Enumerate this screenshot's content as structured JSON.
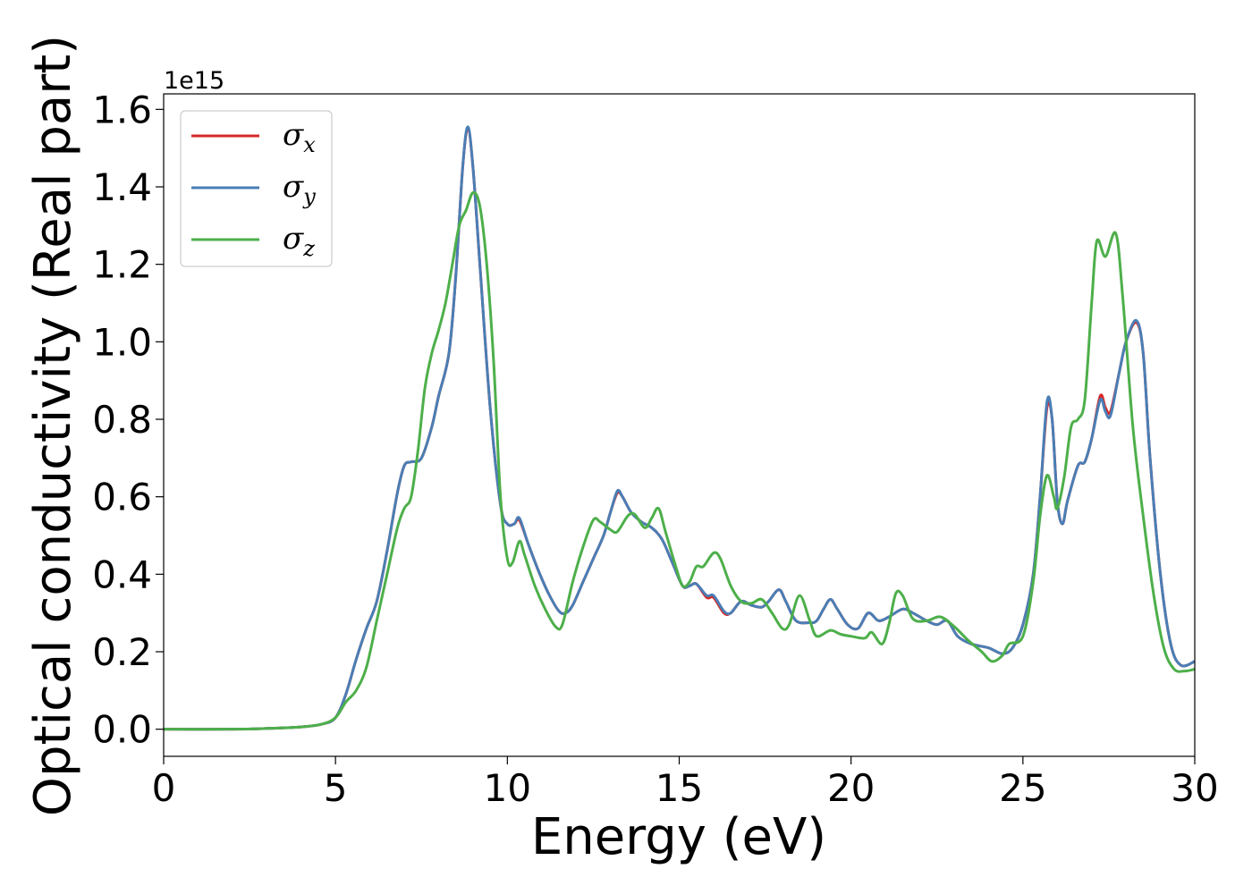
{
  "chart_data": {
    "type": "line",
    "xlabel": "Energy (eV)",
    "ylabel": "Optical conductivity (Real part)",
    "y_offset_label": "1e15",
    "xlim": [
      0,
      30
    ],
    "ylim": [
      -0.07,
      1.64
    ],
    "x_ticks": [
      0,
      5,
      10,
      15,
      20,
      25,
      30
    ],
    "x_tick_labels": [
      "0",
      "5",
      "10",
      "15",
      "20",
      "25",
      "30"
    ],
    "y_ticks": [
      0.0,
      0.2,
      0.4,
      0.6,
      0.8,
      1.0,
      1.2,
      1.4,
      1.6
    ],
    "y_tick_labels": [
      "0.0",
      "0.2",
      "0.4",
      "0.6",
      "0.8",
      "1.0",
      "1.2",
      "1.4",
      "1.6"
    ],
    "grid": false,
    "legend_position": "top-left",
    "series": [
      {
        "name": "σ",
        "subscript": "x",
        "color": "#d62728",
        "points": [
          [
            0,
            0
          ],
          [
            2,
            0
          ],
          [
            3,
            0.002
          ],
          [
            4,
            0.006
          ],
          [
            4.6,
            0.013
          ],
          [
            5,
            0.03
          ],
          [
            5.3,
            0.09
          ],
          [
            5.6,
            0.18
          ],
          [
            5.9,
            0.26
          ],
          [
            6.2,
            0.33
          ],
          [
            6.5,
            0.46
          ],
          [
            6.8,
            0.61
          ],
          [
            7.0,
            0.68
          ],
          [
            7.2,
            0.69
          ],
          [
            7.5,
            0.7
          ],
          [
            7.8,
            0.78
          ],
          [
            8.0,
            0.86
          ],
          [
            8.3,
            0.97
          ],
          [
            8.5,
            1.17
          ],
          [
            8.7,
            1.45
          ],
          [
            8.85,
            1.55
          ],
          [
            9.0,
            1.45
          ],
          [
            9.2,
            1.2
          ],
          [
            9.5,
            0.83
          ],
          [
            9.8,
            0.58
          ],
          [
            10.0,
            0.53
          ],
          [
            10.2,
            0.53
          ],
          [
            10.35,
            0.54
          ],
          [
            10.6,
            0.48
          ],
          [
            10.9,
            0.41
          ],
          [
            11.2,
            0.35
          ],
          [
            11.5,
            0.305
          ],
          [
            11.7,
            0.3
          ],
          [
            11.9,
            0.32
          ],
          [
            12.2,
            0.38
          ],
          [
            12.5,
            0.44
          ],
          [
            12.8,
            0.5
          ],
          [
            13.0,
            0.56
          ],
          [
            13.2,
            0.61
          ],
          [
            13.35,
            0.6
          ],
          [
            13.6,
            0.56
          ],
          [
            13.9,
            0.535
          ],
          [
            14.2,
            0.52
          ],
          [
            14.5,
            0.49
          ],
          [
            14.8,
            0.43
          ],
          [
            15.1,
            0.37
          ],
          [
            15.3,
            0.37
          ],
          [
            15.5,
            0.375
          ],
          [
            15.8,
            0.34
          ],
          [
            16.0,
            0.34
          ],
          [
            16.3,
            0.3
          ],
          [
            16.5,
            0.3
          ],
          [
            16.8,
            0.33
          ],
          [
            17.1,
            0.32
          ],
          [
            17.4,
            0.315
          ],
          [
            17.6,
            0.33
          ],
          [
            17.9,
            0.36
          ],
          [
            18.1,
            0.33
          ],
          [
            18.4,
            0.28
          ],
          [
            18.8,
            0.275
          ],
          [
            19.0,
            0.28
          ],
          [
            19.2,
            0.31
          ],
          [
            19.4,
            0.335
          ],
          [
            19.6,
            0.31
          ],
          [
            19.9,
            0.27
          ],
          [
            20.2,
            0.26
          ],
          [
            20.5,
            0.3
          ],
          [
            20.8,
            0.28
          ],
          [
            21.1,
            0.29
          ],
          [
            21.5,
            0.31
          ],
          [
            21.8,
            0.3
          ],
          [
            22.2,
            0.28
          ],
          [
            22.5,
            0.27
          ],
          [
            22.8,
            0.28
          ],
          [
            23.1,
            0.24
          ],
          [
            23.5,
            0.22
          ],
          [
            24.0,
            0.21
          ],
          [
            24.4,
            0.195
          ],
          [
            24.7,
            0.21
          ],
          [
            25.0,
            0.27
          ],
          [
            25.3,
            0.4
          ],
          [
            25.5,
            0.6
          ],
          [
            25.7,
            0.83
          ],
          [
            25.85,
            0.8
          ],
          [
            26.0,
            0.59
          ],
          [
            26.15,
            0.53
          ],
          [
            26.3,
            0.59
          ],
          [
            26.6,
            0.68
          ],
          [
            26.8,
            0.69
          ],
          [
            27.0,
            0.75
          ],
          [
            27.25,
            0.86
          ],
          [
            27.4,
            0.83
          ],
          [
            27.55,
            0.82
          ],
          [
            27.8,
            0.92
          ],
          [
            28.0,
            1.0
          ],
          [
            28.3,
            1.05
          ],
          [
            28.5,
            0.97
          ],
          [
            28.7,
            0.7
          ],
          [
            29.0,
            0.4
          ],
          [
            29.3,
            0.22
          ],
          [
            29.6,
            0.165
          ],
          [
            30.0,
            0.175
          ]
        ]
      },
      {
        "name": "σ",
        "subscript": "y",
        "color": "#4a7eb5",
        "points": [
          [
            0,
            0
          ],
          [
            2,
            0
          ],
          [
            3,
            0.002
          ],
          [
            4,
            0.006
          ],
          [
            4.6,
            0.013
          ],
          [
            5,
            0.03
          ],
          [
            5.3,
            0.09
          ],
          [
            5.6,
            0.18
          ],
          [
            5.9,
            0.26
          ],
          [
            6.2,
            0.33
          ],
          [
            6.5,
            0.46
          ],
          [
            6.8,
            0.61
          ],
          [
            7.0,
            0.68
          ],
          [
            7.2,
            0.69
          ],
          [
            7.5,
            0.7
          ],
          [
            7.8,
            0.78
          ],
          [
            8.0,
            0.86
          ],
          [
            8.3,
            0.97
          ],
          [
            8.5,
            1.17
          ],
          [
            8.7,
            1.45
          ],
          [
            8.85,
            1.555
          ],
          [
            9.0,
            1.45
          ],
          [
            9.2,
            1.2
          ],
          [
            9.5,
            0.83
          ],
          [
            9.8,
            0.58
          ],
          [
            10.0,
            0.53
          ],
          [
            10.2,
            0.53
          ],
          [
            10.35,
            0.545
          ],
          [
            10.6,
            0.48
          ],
          [
            10.9,
            0.41
          ],
          [
            11.2,
            0.35
          ],
          [
            11.5,
            0.305
          ],
          [
            11.7,
            0.3
          ],
          [
            11.9,
            0.32
          ],
          [
            12.2,
            0.38
          ],
          [
            12.5,
            0.44
          ],
          [
            12.8,
            0.5
          ],
          [
            13.0,
            0.56
          ],
          [
            13.2,
            0.615
          ],
          [
            13.35,
            0.6
          ],
          [
            13.6,
            0.56
          ],
          [
            13.9,
            0.535
          ],
          [
            14.2,
            0.52
          ],
          [
            14.5,
            0.49
          ],
          [
            14.8,
            0.43
          ],
          [
            15.1,
            0.37
          ],
          [
            15.3,
            0.37
          ],
          [
            15.5,
            0.375
          ],
          [
            15.8,
            0.345
          ],
          [
            16.0,
            0.345
          ],
          [
            16.3,
            0.305
          ],
          [
            16.5,
            0.3
          ],
          [
            16.8,
            0.33
          ],
          [
            17.1,
            0.32
          ],
          [
            17.4,
            0.315
          ],
          [
            17.6,
            0.33
          ],
          [
            17.9,
            0.36
          ],
          [
            18.1,
            0.33
          ],
          [
            18.4,
            0.28
          ],
          [
            18.8,
            0.275
          ],
          [
            19.0,
            0.28
          ],
          [
            19.2,
            0.31
          ],
          [
            19.4,
            0.335
          ],
          [
            19.6,
            0.31
          ],
          [
            19.9,
            0.27
          ],
          [
            20.2,
            0.26
          ],
          [
            20.5,
            0.3
          ],
          [
            20.8,
            0.28
          ],
          [
            21.1,
            0.29
          ],
          [
            21.5,
            0.31
          ],
          [
            21.8,
            0.3
          ],
          [
            22.2,
            0.28
          ],
          [
            22.5,
            0.27
          ],
          [
            22.8,
            0.28
          ],
          [
            23.1,
            0.24
          ],
          [
            23.5,
            0.22
          ],
          [
            24.0,
            0.21
          ],
          [
            24.4,
            0.195
          ],
          [
            24.7,
            0.21
          ],
          [
            25.0,
            0.27
          ],
          [
            25.3,
            0.4
          ],
          [
            25.5,
            0.6
          ],
          [
            25.7,
            0.845
          ],
          [
            25.85,
            0.8
          ],
          [
            26.0,
            0.59
          ],
          [
            26.15,
            0.53
          ],
          [
            26.3,
            0.59
          ],
          [
            26.6,
            0.68
          ],
          [
            26.8,
            0.69
          ],
          [
            27.0,
            0.75
          ],
          [
            27.25,
            0.85
          ],
          [
            27.4,
            0.82
          ],
          [
            27.55,
            0.81
          ],
          [
            27.8,
            0.92
          ],
          [
            28.0,
            1.0
          ],
          [
            28.3,
            1.055
          ],
          [
            28.5,
            0.97
          ],
          [
            28.7,
            0.7
          ],
          [
            29.0,
            0.4
          ],
          [
            29.3,
            0.22
          ],
          [
            29.6,
            0.165
          ],
          [
            30.0,
            0.175
          ]
        ]
      },
      {
        "name": "σ",
        "subscript": "z",
        "color": "#4daf4a",
        "points": [
          [
            0,
            0
          ],
          [
            2,
            0
          ],
          [
            3,
            0.002
          ],
          [
            4,
            0.006
          ],
          [
            4.6,
            0.013
          ],
          [
            5,
            0.03
          ],
          [
            5.3,
            0.07
          ],
          [
            5.6,
            0.1
          ],
          [
            5.9,
            0.16
          ],
          [
            6.2,
            0.28
          ],
          [
            6.5,
            0.4
          ],
          [
            6.8,
            0.52
          ],
          [
            7.0,
            0.57
          ],
          [
            7.2,
            0.6
          ],
          [
            7.4,
            0.72
          ],
          [
            7.6,
            0.88
          ],
          [
            7.8,
            0.97
          ],
          [
            8.0,
            1.03
          ],
          [
            8.2,
            1.1
          ],
          [
            8.4,
            1.2
          ],
          [
            8.6,
            1.3
          ],
          [
            8.8,
            1.34
          ],
          [
            9.0,
            1.385
          ],
          [
            9.2,
            1.35
          ],
          [
            9.4,
            1.2
          ],
          [
            9.6,
            0.95
          ],
          [
            9.8,
            0.6
          ],
          [
            10.0,
            0.44
          ],
          [
            10.15,
            0.43
          ],
          [
            10.35,
            0.485
          ],
          [
            10.5,
            0.45
          ],
          [
            10.8,
            0.37
          ],
          [
            11.1,
            0.31
          ],
          [
            11.4,
            0.265
          ],
          [
            11.6,
            0.27
          ],
          [
            11.9,
            0.38
          ],
          [
            12.2,
            0.47
          ],
          [
            12.5,
            0.54
          ],
          [
            12.7,
            0.535
          ],
          [
            13.0,
            0.515
          ],
          [
            13.2,
            0.51
          ],
          [
            13.5,
            0.55
          ],
          [
            13.7,
            0.555
          ],
          [
            14.0,
            0.52
          ],
          [
            14.2,
            0.545
          ],
          [
            14.4,
            0.57
          ],
          [
            14.6,
            0.51
          ],
          [
            14.9,
            0.42
          ],
          [
            15.1,
            0.37
          ],
          [
            15.3,
            0.38
          ],
          [
            15.5,
            0.42
          ],
          [
            15.7,
            0.42
          ],
          [
            16.0,
            0.455
          ],
          [
            16.2,
            0.44
          ],
          [
            16.5,
            0.37
          ],
          [
            16.8,
            0.33
          ],
          [
            17.1,
            0.325
          ],
          [
            17.4,
            0.335
          ],
          [
            17.7,
            0.3
          ],
          [
            18.0,
            0.26
          ],
          [
            18.2,
            0.27
          ],
          [
            18.5,
            0.345
          ],
          [
            18.8,
            0.28
          ],
          [
            19.0,
            0.24
          ],
          [
            19.4,
            0.255
          ],
          [
            19.7,
            0.245
          ],
          [
            20.0,
            0.24
          ],
          [
            20.4,
            0.235
          ],
          [
            20.6,
            0.25
          ],
          [
            20.9,
            0.22
          ],
          [
            21.1,
            0.27
          ],
          [
            21.3,
            0.35
          ],
          [
            21.5,
            0.345
          ],
          [
            21.8,
            0.285
          ],
          [
            22.2,
            0.28
          ],
          [
            22.6,
            0.29
          ],
          [
            23.0,
            0.265
          ],
          [
            23.4,
            0.23
          ],
          [
            23.8,
            0.2
          ],
          [
            24.1,
            0.175
          ],
          [
            24.4,
            0.19
          ],
          [
            24.6,
            0.22
          ],
          [
            25.0,
            0.24
          ],
          [
            25.3,
            0.38
          ],
          [
            25.5,
            0.55
          ],
          [
            25.7,
            0.655
          ],
          [
            25.9,
            0.6
          ],
          [
            26.0,
            0.57
          ],
          [
            26.2,
            0.65
          ],
          [
            26.4,
            0.78
          ],
          [
            26.6,
            0.8
          ],
          [
            26.8,
            0.85
          ],
          [
            27.0,
            1.1
          ],
          [
            27.15,
            1.26
          ],
          [
            27.4,
            1.22
          ],
          [
            27.7,
            1.28
          ],
          [
            27.9,
            1.12
          ],
          [
            28.2,
            0.78
          ],
          [
            28.5,
            0.55
          ],
          [
            28.8,
            0.35
          ],
          [
            29.1,
            0.21
          ],
          [
            29.4,
            0.155
          ],
          [
            29.7,
            0.15
          ],
          [
            30.0,
            0.155
          ]
        ]
      }
    ]
  }
}
